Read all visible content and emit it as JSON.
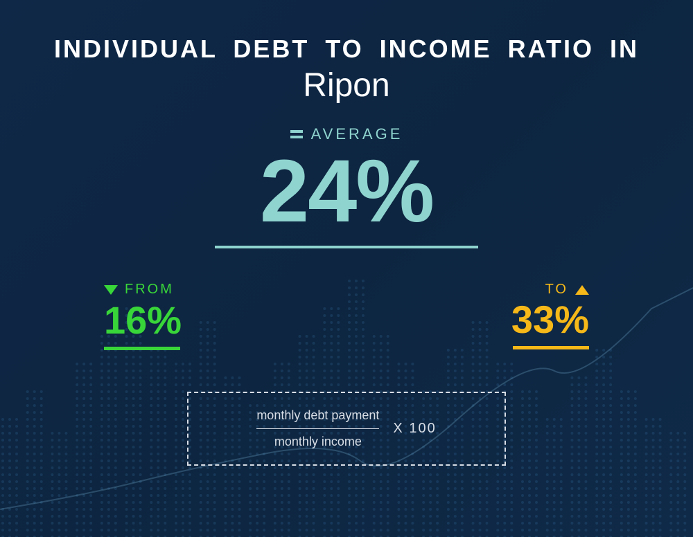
{
  "background": {
    "gradient_from": "#0f2847",
    "gradient_to": "#0f2a48",
    "dot_color": "#2a5a85",
    "line_color": "#6fa8c9"
  },
  "title": {
    "line1": "INDIVIDUAL DEBT TO INCOME RATIO IN",
    "line2": "Ripon",
    "color": "#ffffff",
    "line1_fontsize": 36,
    "line2_fontsize": 48
  },
  "average": {
    "label": "AVERAGE",
    "value": "24%",
    "color": "#8fd4cf",
    "label_fontsize": 22,
    "value_fontsize": 128,
    "underline_width": 380
  },
  "from": {
    "label": "FROM",
    "value": "16%",
    "color": "#39d639",
    "label_fontsize": 20,
    "value_fontsize": 56
  },
  "to": {
    "label": "TO",
    "value": "33%",
    "color": "#f5b818",
    "label_fontsize": 20,
    "value_fontsize": 56
  },
  "formula": {
    "numerator": "monthly debt payment",
    "denominator": "monthly income",
    "multiplier": "X 100",
    "border_color": "#d8dee6",
    "text_color": "#d8dee6",
    "fontsize": 18
  }
}
